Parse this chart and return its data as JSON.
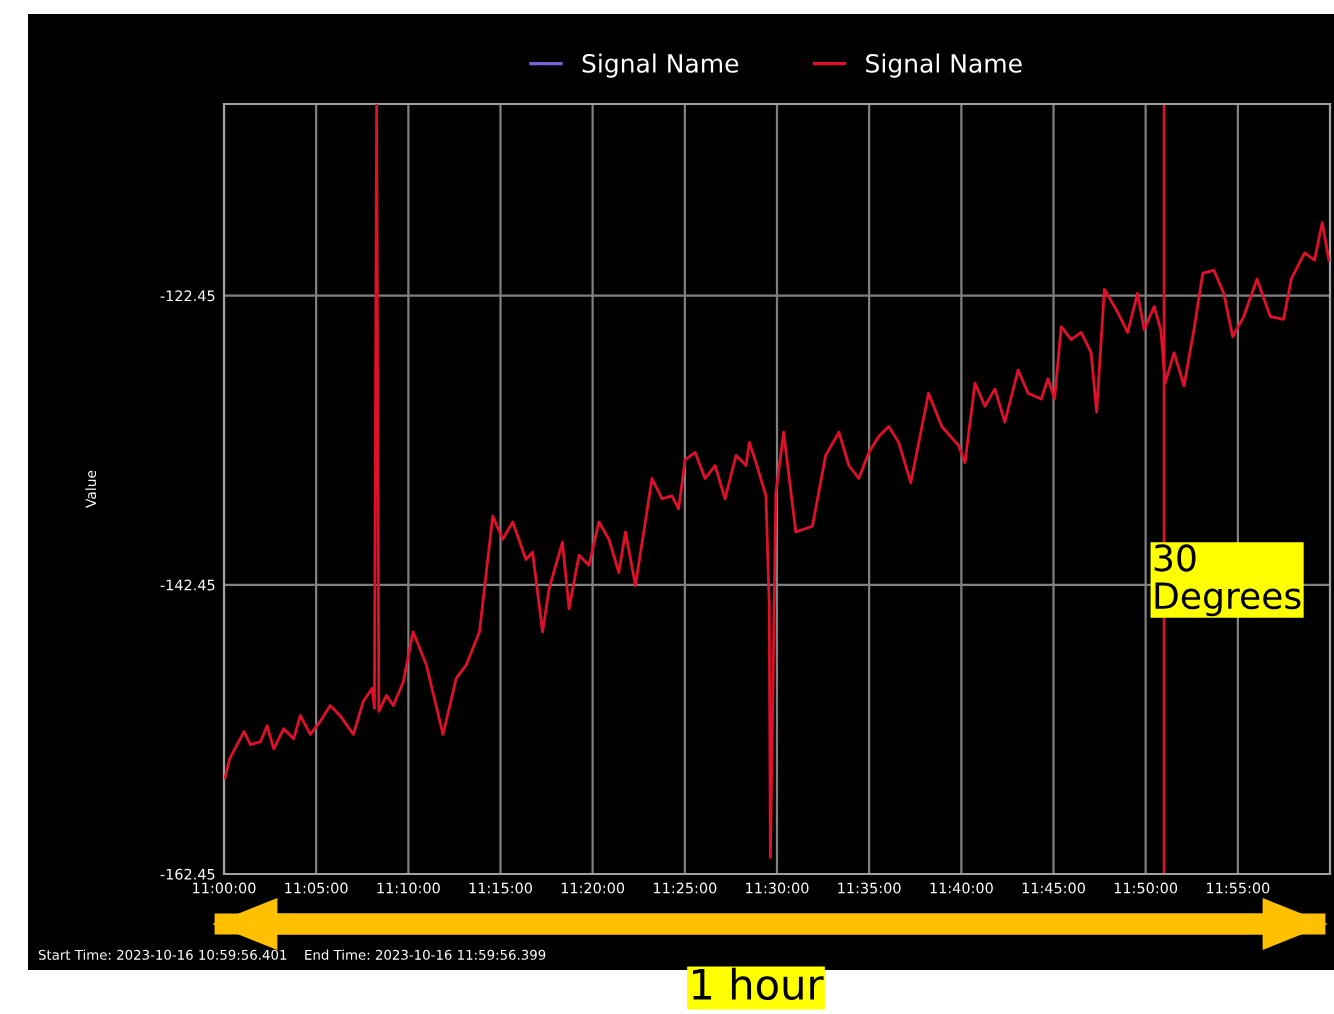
{
  "chart_data": {
    "type": "line",
    "ylabel": "Value",
    "x": [
      11.001,
      11.005,
      11.018,
      11.024,
      11.033,
      11.039,
      11.045,
      11.054,
      11.063,
      11.069,
      11.078,
      11.087,
      11.096,
      11.105,
      11.117,
      11.126,
      11.134,
      11.136,
      11.138,
      11.14,
      11.147,
      11.153,
      11.162,
      11.171,
      11.183,
      11.198,
      11.21,
      11.219,
      11.231,
      11.243,
      11.252,
      11.261,
      11.273,
      11.279,
      11.288,
      11.294,
      11.306,
      11.312,
      11.321,
      11.33,
      11.339,
      11.348,
      11.357,
      11.363,
      11.372,
      11.387,
      11.396,
      11.405,
      11.411,
      11.417,
      11.426,
      11.435,
      11.444,
      11.453,
      11.463,
      11.472,
      11.475,
      11.481,
      11.49,
      11.493,
      11.494,
      11.499,
      11.506,
      11.517,
      11.532,
      11.544,
      11.556,
      11.565,
      11.574,
      11.583,
      11.592,
      11.601,
      11.61,
      11.621,
      11.637,
      11.649,
      11.664,
      11.67,
      11.679,
      11.688,
      11.697,
      11.706,
      11.718,
      11.727,
      11.739,
      11.745,
      11.751,
      11.757,
      11.766,
      11.775,
      11.784,
      11.789,
      11.796,
      11.808,
      11.817,
      11.826,
      11.832,
      11.841,
      11.847,
      11.851,
      11.859,
      11.868,
      11.877,
      11.885,
      11.895,
      11.904,
      11.912,
      11.922,
      11.934,
      11.946,
      11.958,
      11.965,
      11.977,
      11.986,
      11.993,
      11.999
    ],
    "series": [
      {
        "name": "Signal Name",
        "color": "#7b5fd6",
        "values": [
          null,
          null,
          null,
          null,
          null,
          null,
          null,
          null,
          null,
          null,
          null,
          null,
          null,
          null,
          null,
          null,
          null,
          null,
          null,
          null,
          null,
          null,
          null,
          null,
          null,
          null,
          null,
          null,
          null,
          null,
          null,
          null,
          null,
          null,
          null,
          null,
          null,
          null,
          null,
          null,
          null,
          null,
          null,
          null,
          null,
          null,
          null,
          null,
          null,
          null,
          null,
          null,
          null,
          null,
          null,
          null,
          null,
          null,
          null,
          null,
          null,
          null,
          null,
          null,
          null,
          null,
          null,
          null,
          null,
          null,
          null,
          null,
          null,
          null,
          null,
          null,
          null,
          null,
          null,
          null,
          null,
          null,
          null,
          null,
          null,
          null,
          null,
          null,
          null,
          null,
          null,
          null,
          null,
          null,
          null,
          null,
          null,
          null,
          null,
          null,
          null,
          null,
          null,
          null,
          null,
          null,
          null,
          null,
          null,
          null,
          null,
          null,
          null,
          null,
          null,
          null
        ]
      },
      {
        "name": "Signal Name",
        "color": "#e0102a",
        "values": [
          -155.8,
          -154.5,
          -152.6,
          -153.5,
          -153.3,
          -152.2,
          -153.8,
          -152.4,
          -153.1,
          -151.5,
          -152.8,
          -151.9,
          -150.8,
          -151.5,
          -152.8,
          -150.5,
          -149.6,
          -151.0,
          -109.2,
          -151.2,
          -150.1,
          -150.8,
          -149.2,
          -145.7,
          -148.0,
          -152.8,
          -148.9,
          -148.0,
          -145.7,
          -137.7,
          -139.3,
          -138.1,
          -140.7,
          -140.2,
          -145.7,
          -142.7,
          -139.5,
          -144.1,
          -140.4,
          -141.1,
          -138.1,
          -139.3,
          -141.6,
          -138.8,
          -142.5,
          -135.1,
          -136.5,
          -136.3,
          -137.2,
          -133.8,
          -133.3,
          -135.1,
          -134.2,
          -136.5,
          -133.5,
          -134.2,
          -132.6,
          -134.0,
          -136.3,
          -143.9,
          -161.3,
          -136.1,
          -131.9,
          -138.8,
          -138.4,
          -133.5,
          -131.9,
          -134.2,
          -135.1,
          -133.3,
          -132.2,
          -131.5,
          -132.6,
          -135.4,
          -129.2,
          -131.5,
          -132.8,
          -134.0,
          -128.5,
          -130.1,
          -128.9,
          -131.2,
          -127.6,
          -129.2,
          -129.6,
          -128.2,
          -129.6,
          -124.6,
          -125.5,
          -125.0,
          -126.4,
          -130.5,
          -122.0,
          -123.6,
          -125.0,
          -122.3,
          -124.8,
          -123.2,
          -124.8,
          -128.5,
          -126.4,
          -128.7,
          -124.8,
          -120.9,
          -120.7,
          -122.3,
          -125.3,
          -123.9,
          -121.3,
          -123.9,
          -124.1,
          -121.3,
          -119.5,
          -120.0,
          -117.4,
          -120.0
        ]
      }
    ],
    "xlim": [
      11.0,
      12.0
    ],
    "ylim": [
      -162.45,
      -109.2
    ],
    "xticks": [
      {
        "value": 11.0,
        "label": "11:00:00"
      },
      {
        "value": 11.0833,
        "label": "11:05:00"
      },
      {
        "value": 11.1667,
        "label": "11:10:00"
      },
      {
        "value": 11.25,
        "label": "11:15:00"
      },
      {
        "value": 11.3333,
        "label": "11:20:00"
      },
      {
        "value": 11.4167,
        "label": "11:25:00"
      },
      {
        "value": 11.5,
        "label": "11:30:00"
      },
      {
        "value": 11.5833,
        "label": "11:35:00"
      },
      {
        "value": 11.6667,
        "label": "11:40:00"
      },
      {
        "value": 11.75,
        "label": "11:45:00"
      },
      {
        "value": 11.8333,
        "label": "11:50:00"
      },
      {
        "value": 11.9167,
        "label": "11:55:00"
      }
    ],
    "yticks": [
      -122.45,
      -142.45,
      -162.45
    ],
    "ref_lines": [
      {
        "axis": "x",
        "value": 11.85,
        "color": "#e0102a"
      }
    ],
    "annotations": [
      "Start Time: 2023-10-16 10:59:56.401",
      "End Time: 2023-10-16 11:59:56.399",
      "1 hour",
      "30 Degrees"
    ],
    "grid": true,
    "legend": "top",
    "marker": "none",
    "line_style": "solid"
  }
}
